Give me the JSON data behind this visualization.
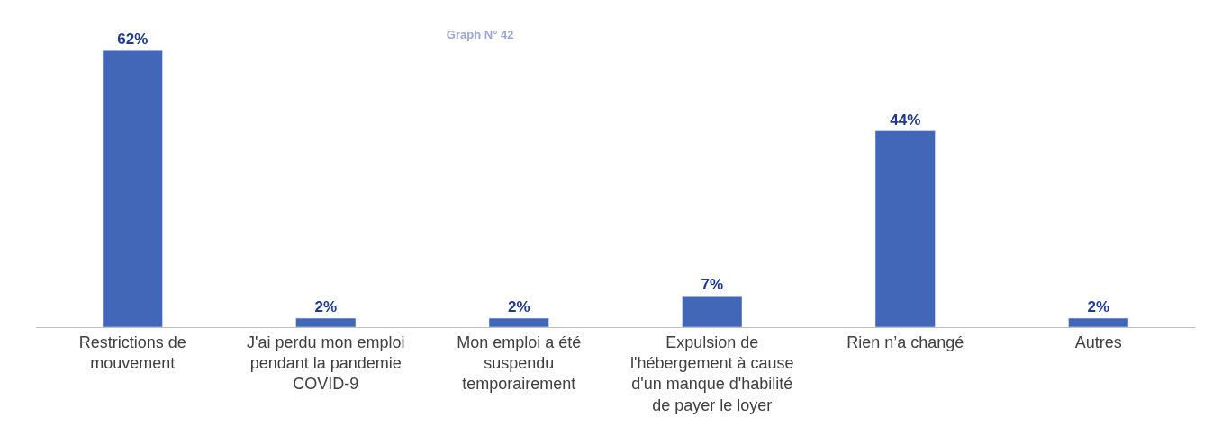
{
  "chart_data": {
    "type": "bar",
    "title": "Graph N° 42",
    "categories": [
      "Restrictions de mouvement",
      "J'ai perdu mon emploi pendant la pandemie COVID-9",
      "Mon emploi a été suspendu temporairement",
      "Expulsion de l'hébergement à cause d'un manque d'habilité de payer le loyer",
      "Rien n’a changé",
      "Autres"
    ],
    "values": [
      62,
      2,
      2,
      7,
      44,
      2
    ],
    "value_labels": [
      "62%",
      "2%",
      "2%",
      "7%",
      "44%",
      "2%"
    ],
    "color": "#4267b8"
  }
}
